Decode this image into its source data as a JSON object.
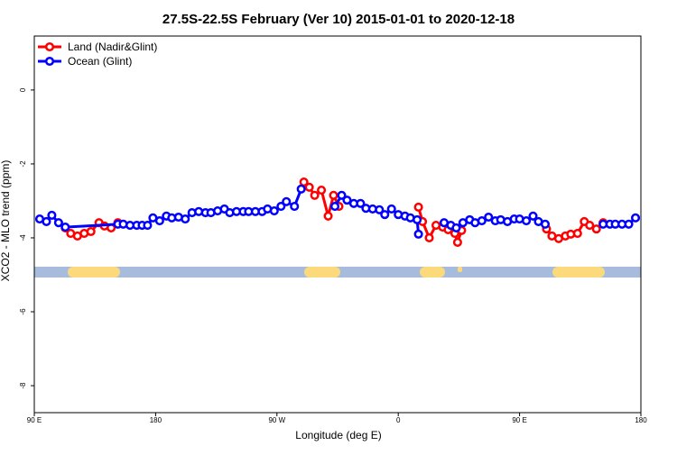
{
  "chart_data": {
    "type": "line",
    "title": "27.5S-22.5S February (Ver 10)   2015-01-01 to 2020-12-18",
    "x_label": "Longitude (deg E)",
    "y_label": "XCO2 - MLO trend (ppm)",
    "xlim": [
      90,
      540
    ],
    "xticks": [
      {
        "value": 90,
        "label": "90 E"
      },
      {
        "value": 180,
        "label": "180"
      },
      {
        "value": 270,
        "label": "90 W"
      },
      {
        "value": 360,
        "label": "0"
      },
      {
        "value": 450,
        "label": "90 E"
      },
      {
        "value": 540,
        "label": "180"
      }
    ],
    "ylim": [
      -8.73,
      1.46
    ],
    "yticks": [
      0,
      -2,
      -4,
      -6,
      -8
    ],
    "legend": "top-left",
    "series": [
      {
        "name": "Land (Nadir&Glint)",
        "color": "#ff0000",
        "x": [
          113,
          117,
          122,
          127,
          132,
          138,
          142,
          147,
          152,
          null,
          290,
          294,
          298,
          303,
          308,
          312,
          316,
          null,
          375,
          378,
          383,
          388,
          393,
          397,
          402,
          404,
          407,
          null,
          470,
          474,
          479,
          484,
          488,
          493,
          498,
          502,
          507,
          512
        ],
        "values": [
          -3.73,
          -3.88,
          -3.95,
          -3.88,
          -3.83,
          -3.59,
          -3.68,
          -3.73,
          -3.59,
          null,
          -2.49,
          -2.63,
          -2.85,
          -2.71,
          -3.41,
          -2.85,
          -3.15,
          null,
          -3.17,
          -3.56,
          -4.0,
          -3.66,
          -3.71,
          -3.78,
          -3.88,
          -4.12,
          -3.8,
          null,
          -3.76,
          -3.95,
          -4.02,
          -3.95,
          -3.9,
          -3.88,
          -3.56,
          -3.66,
          -3.76,
          -3.59
        ]
      },
      {
        "name": "Ocean (Glint)",
        "color": "#0000ff",
        "x": [
          94,
          99,
          103,
          108,
          113,
          152,
          156,
          161,
          166,
          170,
          174,
          178,
          183,
          188,
          192,
          197,
          202,
          207,
          212,
          217,
          221,
          226,
          231,
          235,
          240,
          245,
          249,
          254,
          259,
          263,
          268,
          273,
          277,
          283,
          288,
          null,
          313,
          318,
          322,
          327,
          332,
          336,
          341,
          346,
          350,
          355,
          360,
          365,
          369,
          374,
          375,
          null,
          394,
          399,
          403,
          408,
          413,
          417,
          422,
          427,
          432,
          436,
          441,
          446,
          450,
          455,
          460,
          464,
          469,
          null,
          512,
          517,
          521,
          526,
          531,
          536
        ],
        "values": [
          -3.49,
          -3.56,
          -3.39,
          -3.59,
          -3.71,
          -3.63,
          -3.63,
          -3.66,
          -3.66,
          -3.66,
          -3.66,
          -3.46,
          -3.54,
          -3.41,
          -3.46,
          -3.44,
          -3.49,
          -3.32,
          -3.29,
          -3.32,
          -3.32,
          -3.27,
          -3.22,
          -3.32,
          -3.29,
          -3.29,
          -3.29,
          -3.29,
          -3.29,
          -3.22,
          -3.27,
          -3.15,
          -3.02,
          -3.15,
          -2.68,
          null,
          -3.15,
          -2.85,
          -2.98,
          -3.07,
          -3.07,
          -3.2,
          -3.22,
          -3.24,
          -3.37,
          -3.22,
          -3.37,
          -3.41,
          -3.46,
          -3.51,
          -3.9,
          null,
          -3.59,
          -3.66,
          -3.73,
          -3.59,
          -3.51,
          -3.59,
          -3.54,
          -3.44,
          -3.54,
          -3.51,
          -3.56,
          -3.49,
          -3.49,
          -3.54,
          -3.41,
          -3.56,
          -3.63,
          null,
          -3.63,
          -3.63,
          -3.63,
          -3.63,
          -3.63,
          -3.46
        ]
      }
    ]
  }
}
